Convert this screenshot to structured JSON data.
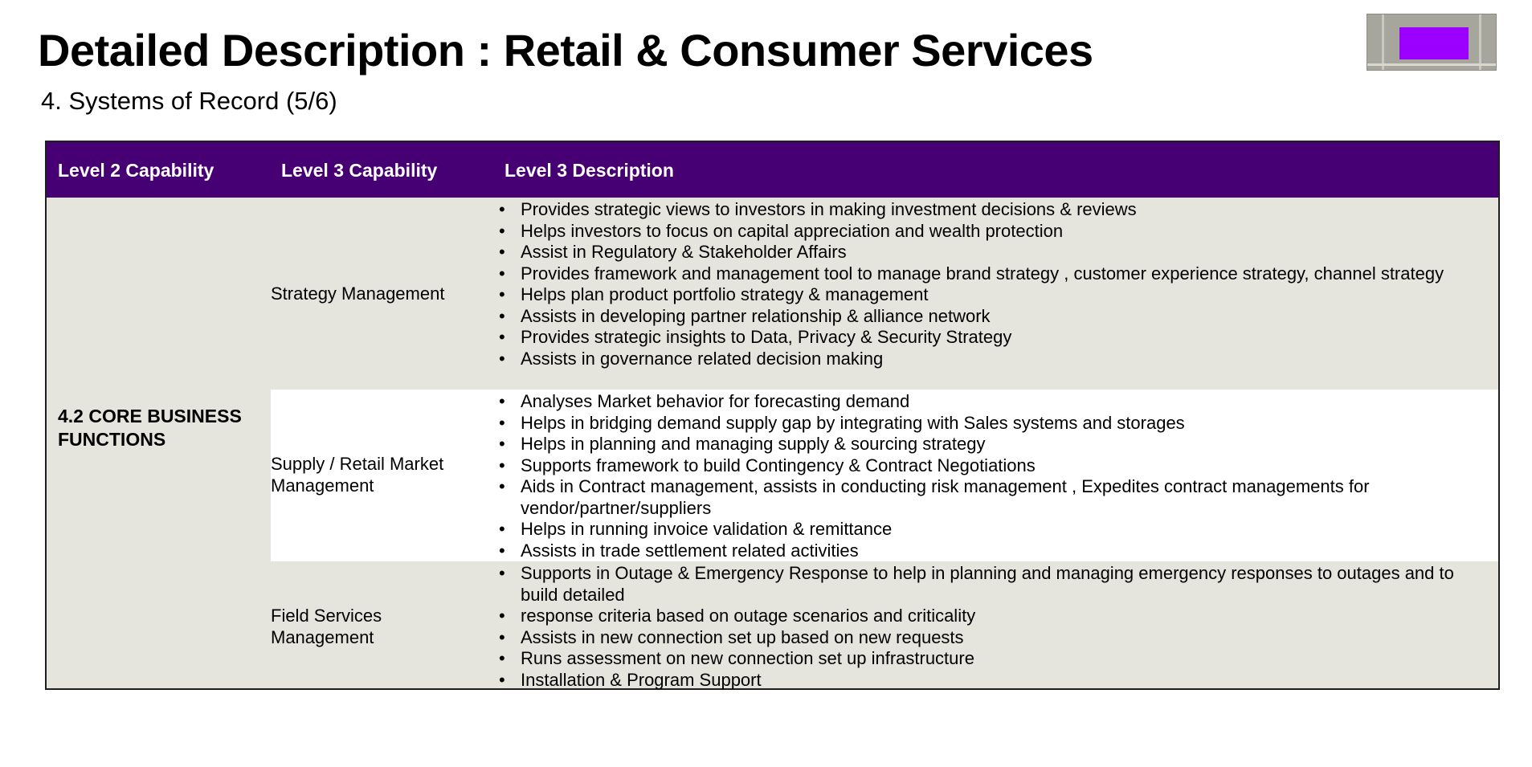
{
  "header": {
    "title": "Detailed Description : Retail & Consumer Services",
    "subtitle": "4. Systems of Record (5/6)"
  },
  "table": {
    "columns": [
      "Level 2 Capability",
      "Level 3 Capability",
      "Level 3 Description"
    ],
    "level2_capability": "4.2 CORE BUSINESS FUNCTIONS",
    "rows": [
      {
        "capability": "Strategy Management",
        "descriptions": [
          "Provides strategic views to investors in making investment decisions & reviews",
          "Helps investors to focus on capital appreciation and wealth protection",
          "Assist in Regulatory & Stakeholder Affairs",
          "Provides framework and management tool to manage brand strategy , customer experience strategy, channel strategy",
          "Helps plan product portfolio strategy & management",
          "Assists in developing partner relationship & alliance network",
          "Provides strategic insights to Data, Privacy & Security Strategy",
          "Assists in governance related decision making"
        ]
      },
      {
        "capability": "Supply / Retail Market Management",
        "descriptions": [
          "Analyses Market behavior for forecasting demand",
          "Helps in bridging demand supply gap by integrating with Sales systems and storages",
          "Helps in planning and managing supply & sourcing strategy",
          "Supports framework to build Contingency & Contract Negotiations",
          "Aids in Contract management, assists in conducting risk management , Expedites contract managements for vendor/partner/suppliers",
          "Helps in running invoice validation & remittance",
          "Assists in trade settlement related activities"
        ]
      },
      {
        "capability": "Field Services Management",
        "descriptions": [
          "Supports in Outage & Emergency Response to help in planning and managing emergency responses to outages and to build detailed",
          "response criteria based on outage scenarios and criticality",
          "Assists in new connection set up based on new requests",
          "Runs assessment on new connection set up infrastructure",
          "Installation & Program Support"
        ]
      }
    ]
  },
  "colors": {
    "header_bg": "#460073",
    "row_alt_bg": "#e5e4dd",
    "thumbnail_accent": "#9b00ff"
  }
}
